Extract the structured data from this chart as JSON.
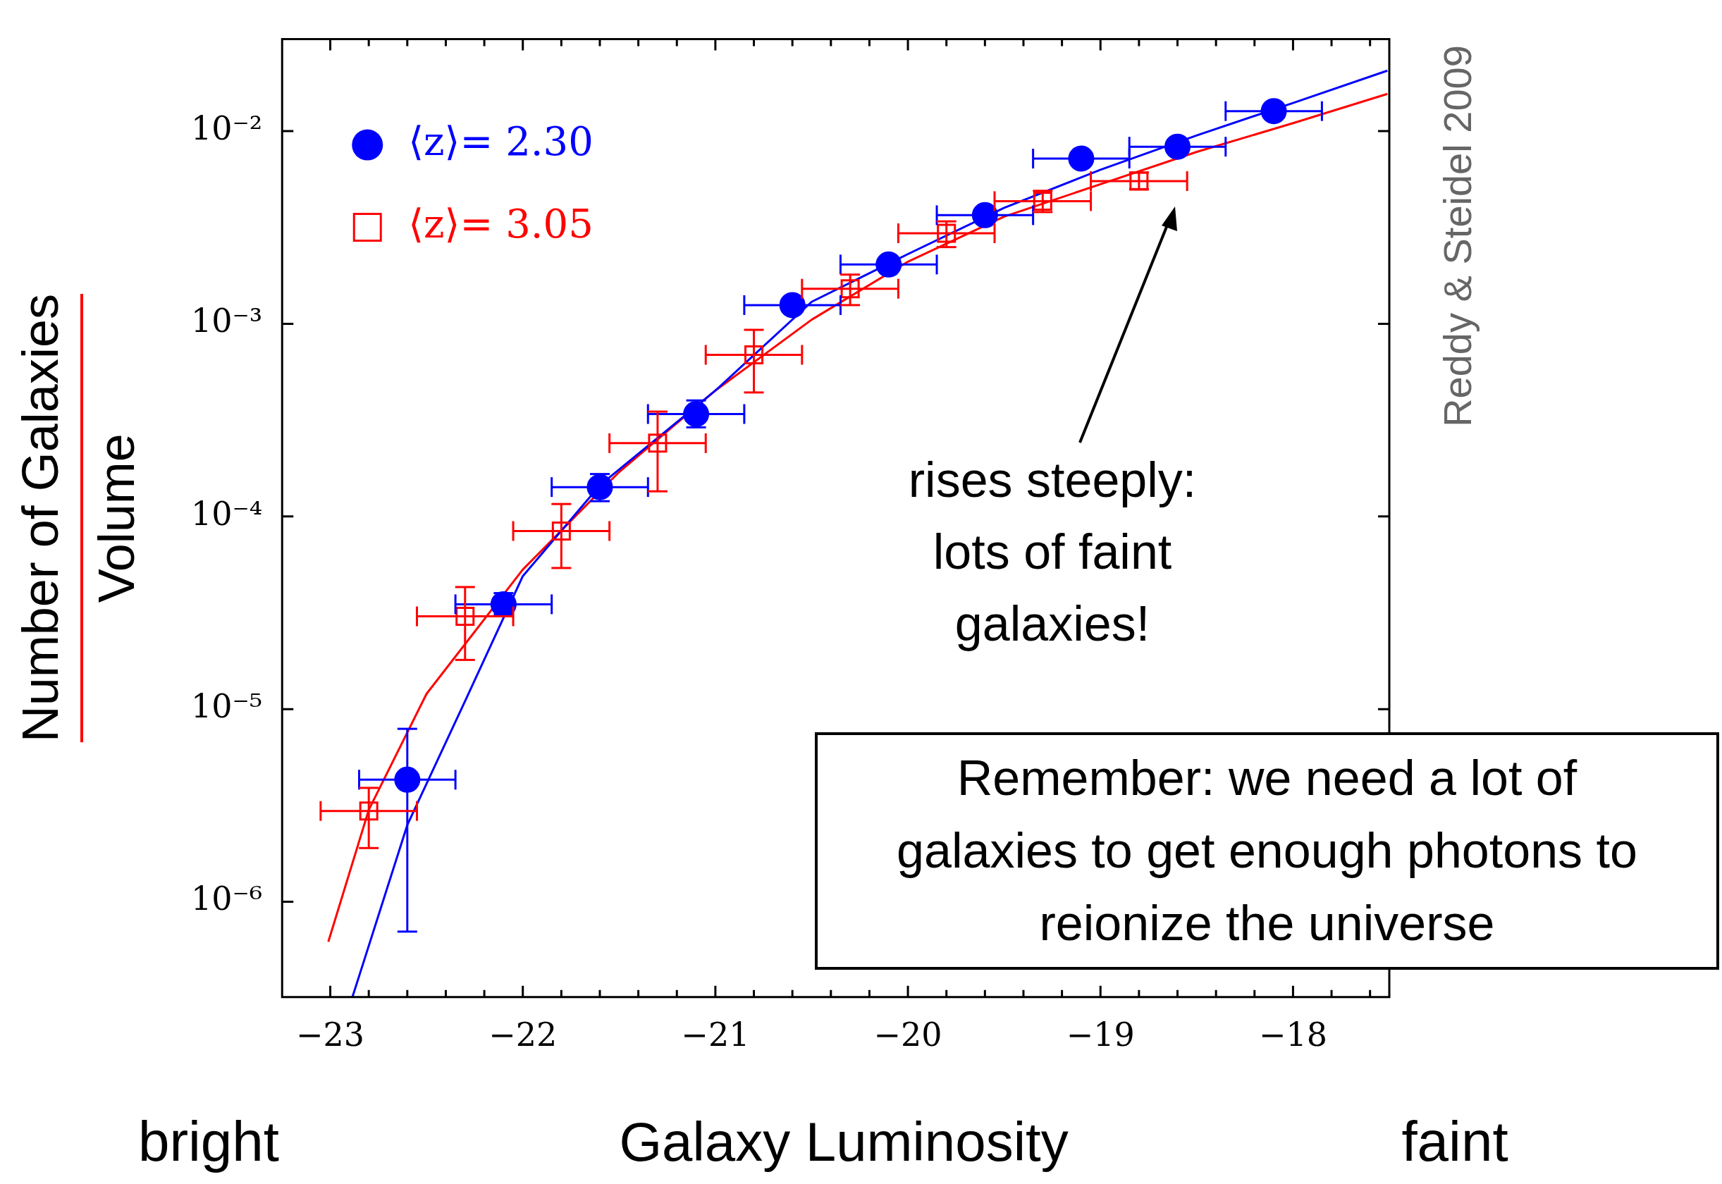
{
  "chart_data": {
    "type": "scatter",
    "xlabel": "Galaxy Luminosity",
    "ylabel": "Number of Galaxies\nVolume",
    "log": "y",
    "grid": false,
    "legend": "top left",
    "xlim": [
      -23.25,
      -17.5
    ],
    "ylim": [
      3.2e-07,
      0.03
    ],
    "xticks": [
      {
        "value": -23,
        "label": "−23"
      },
      {
        "value": -22.8,
        "label": null
      },
      {
        "value": -22.6,
        "label": null
      },
      {
        "value": -22.4,
        "label": null
      },
      {
        "value": -22.2,
        "label": null
      },
      {
        "value": -22,
        "label": "−22"
      },
      {
        "value": -21.8,
        "label": null
      },
      {
        "value": -21.6,
        "label": null
      },
      {
        "value": -21.4,
        "label": null
      },
      {
        "value": -21.2,
        "label": null
      },
      {
        "value": -21,
        "label": "−21"
      },
      {
        "value": -20.8,
        "label": null
      },
      {
        "value": -20.6,
        "label": null
      },
      {
        "value": -20.4,
        "label": null
      },
      {
        "value": -20.2,
        "label": null
      },
      {
        "value": -20,
        "label": "−20"
      },
      {
        "value": -19.8,
        "label": null
      },
      {
        "value": -19.6,
        "label": null
      },
      {
        "value": -19.4,
        "label": null
      },
      {
        "value": -19.2,
        "label": null
      },
      {
        "value": -19,
        "label": "−19"
      },
      {
        "value": -18.8,
        "label": null
      },
      {
        "value": -18.6,
        "label": null
      },
      {
        "value": -18.4,
        "label": null
      },
      {
        "value": -18.2,
        "label": null
      },
      {
        "value": -18,
        "label": "−18"
      },
      {
        "value": -17.8,
        "label": null
      },
      {
        "value": -17.6,
        "label": null
      }
    ],
    "yticks": [
      {
        "value": 1e-06,
        "label": "10⁻⁶"
      },
      {
        "value": 1e-05,
        "label": "10⁻⁵"
      },
      {
        "value": 0.0001,
        "label": "10⁻⁴"
      },
      {
        "value": 0.001,
        "label": "10⁻³"
      },
      {
        "value": 0.01,
        "label": "10⁻²"
      }
    ],
    "series": [
      {
        "name": "⟨z⟩= 2.30",
        "color": "#0000ff",
        "marker": "circle",
        "x": [
          -22.6,
          -22.1,
          -21.6,
          -21.1,
          -20.6,
          -20.1,
          -19.6,
          -19.1,
          -18.6,
          -18.1
        ],
        "values": [
          4.3e-06,
          3.5e-05,
          0.000142,
          0.00034,
          0.00125,
          0.00203,
          0.00366,
          0.0072,
          0.0083,
          0.0127
        ],
        "errors": [
          [
            7e-07,
            7.9e-06
          ],
          [
            3.1e-05,
            4e-05
          ],
          [
            0.00012,
            0.000166
          ],
          [
            0.00029,
            0.0004
          ],
          null,
          null,
          null,
          null,
          null,
          null
        ],
        "xerrors": [
          0.25,
          0.25,
          0.25,
          0.25,
          0.25,
          0.25,
          0.25,
          0.25,
          0.25,
          0.25
        ]
      },
      {
        "name": "⟨z⟩= 3.05",
        "color": "#ff0000",
        "marker": "square",
        "x": [
          -22.8,
          -22.3,
          -21.8,
          -21.3,
          -20.8,
          -20.3,
          -19.8,
          -19.3,
          -18.8
        ],
        "values": [
          2.96e-06,
          3.03e-05,
          8.4e-05,
          0.00024,
          0.00069,
          0.00152,
          0.00295,
          0.00433,
          0.0055
        ],
        "errors": [
          [
            1.9e-06,
            3.9e-06
          ],
          [
            1.8e-05,
            4.3e-05
          ],
          [
            5.4e-05,
            0.000116
          ],
          [
            0.000135,
            0.00035
          ],
          [
            0.00044,
            0.00093
          ],
          [
            0.00125,
            0.0018
          ],
          [
            0.0025,
            0.0034
          ],
          [
            0.0038,
            0.0049
          ],
          [
            0.005,
            0.0061
          ]
        ],
        "xerrors": [
          0.25,
          0.25,
          0.25,
          0.25,
          0.25,
          0.25,
          0.25,
          0.25,
          0.25
        ]
      },
      {
        "type": "line",
        "color": "#0000ff",
        "marker": "none",
        "x": [
          -22.885,
          -22.6,
          -22.3,
          -22.0,
          -21.6,
          -21.0,
          -20.5,
          -20.0,
          -19.5,
          -19.0,
          -18.5,
          -18.0,
          -17.51
        ],
        "values": [
          3.2e-07,
          2.5e-06,
          1.1e-05,
          4.9e-05,
          0.000145,
          0.00045,
          0.0013,
          0.0023,
          0.004,
          0.0063,
          0.0095,
          0.014,
          0.0206
        ]
      },
      {
        "type": "line",
        "color": "#ff0000",
        "marker": "none",
        "x": [
          -23.01,
          -22.8,
          -22.5,
          -22.0,
          -21.5,
          -21.0,
          -20.5,
          -20.0,
          -19.5,
          -19.0,
          -18.5,
          -18.0,
          -17.51
        ],
        "values": [
          6.2e-07,
          3e-06,
          1.2e-05,
          5.3e-05,
          0.00017,
          0.00045,
          0.00105,
          0.0021,
          0.0036,
          0.0053,
          0.0078,
          0.011,
          0.0156
        ]
      }
    ],
    "annotations": [
      "rises steeply:\nlots of faint\ngalaxies!",
      "Remember: we need a lot of\ngalaxies to get enough photons to\nreionize the universe",
      "Reddy & Steidel 2009",
      "bright",
      "faint"
    ]
  }
}
